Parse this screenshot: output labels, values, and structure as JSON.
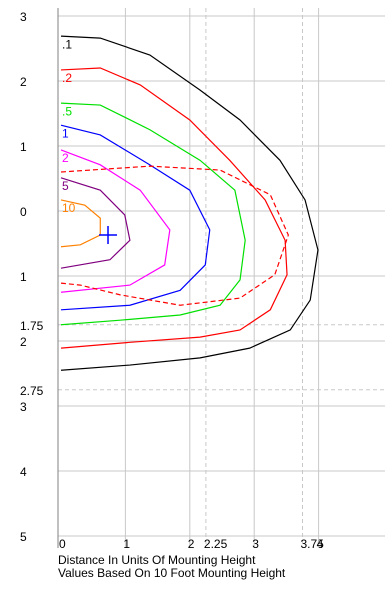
{
  "chart_data": {
    "type": "contour",
    "xlabel": "Distance In Units Of Mounting Height",
    "note": "Values Based On 10 Foot Mounting Height",
    "xlim": [
      0,
      5
    ],
    "ylim": [
      -5,
      3
    ],
    "xticks": [
      0,
      1,
      2,
      {
        "value": 2.25,
        "style": "dashed"
      },
      3,
      {
        "value": 3.75,
        "style": "dashed"
      },
      4
    ],
    "yticks": [
      3,
      2,
      1,
      0,
      {
        "value": -1,
        "label": "1"
      },
      {
        "value": -1.75,
        "label": "1.75",
        "style": "dashed"
      },
      {
        "value": -2,
        "label": "2"
      },
      {
        "value": -2.75,
        "label": "2.75",
        "style": "dashed"
      },
      {
        "value": -3,
        "label": "3"
      },
      {
        "value": -4,
        "label": "4"
      },
      {
        "value": -5,
        "label": "5"
      }
    ],
    "grid": true,
    "series": [
      {
        "name": ".1",
        "color": "#000000",
        "x": [
          0,
          0.61,
          1.38,
          2.16,
          2.78,
          3.4,
          3.79,
          3.99,
          3.87,
          3.56,
          2.93,
          2.16,
          1.07,
          0
        ],
        "y": [
          2.69,
          2.66,
          2.4,
          1.86,
          1.4,
          0.78,
          0.17,
          -0.6,
          -1.37,
          -1.83,
          -2.11,
          -2.26,
          -2.37,
          -2.45
        ]
      },
      {
        "name": ".2",
        "color": "#ff0000",
        "x": [
          0,
          0.61,
          1.23,
          2.0,
          2.62,
          3.17,
          3.48,
          3.51,
          3.25,
          2.78,
          2.16,
          1.07,
          0
        ],
        "y": [
          2.17,
          2.2,
          1.94,
          1.4,
          0.78,
          0.17,
          -0.45,
          -0.98,
          -1.52,
          -1.83,
          -1.94,
          -2.02,
          -2.11
        ]
      },
      {
        "name": ".5",
        "color": "#00e000",
        "x": [
          0,
          0.61,
          1.38,
          2.16,
          2.7,
          2.86,
          2.78,
          2.47,
          1.85,
          0.92,
          0
        ],
        "y": [
          1.66,
          1.63,
          1.25,
          0.78,
          0.32,
          -0.45,
          -1.06,
          -1.45,
          -1.6,
          -1.68,
          -1.75
        ]
      },
      {
        "name": "1",
        "color": "#0000ff",
        "x": [
          0,
          0.61,
          1.38,
          2.0,
          2.31,
          2.24,
          1.85,
          1.07,
          0
        ],
        "y": [
          1.32,
          1.17,
          0.71,
          0.32,
          -0.29,
          -0.83,
          -1.22,
          -1.45,
          -1.52
        ]
      },
      {
        "name": "2",
        "color": "#ff00ff",
        "x": [
          0,
          0.61,
          1.23,
          1.69,
          1.61,
          1.07,
          0
        ],
        "y": [
          0.94,
          0.71,
          0.32,
          -0.29,
          -0.83,
          -1.14,
          -1.25
        ]
      },
      {
        "name": "5",
        "color": "#800080",
        "x": [
          0,
          0.61,
          0.99,
          1.07,
          0.76,
          0
        ],
        "y": [
          0.51,
          0.32,
          -0.06,
          -0.45,
          -0.75,
          -0.88
        ]
      },
      {
        "name": "10",
        "color": "#ff8000",
        "x": [
          0,
          0.37,
          0.61,
          0.61,
          0.3,
          0
        ],
        "y": [
          0.17,
          0.09,
          -0.11,
          -0.37,
          -0.52,
          -0.55
        ]
      },
      {
        "color": "#ff0000",
        "dashed": true,
        "x": [
          0,
          1.38,
          2.47,
          3.25,
          3.53,
          3.32,
          2.78,
          1.85,
          0.92,
          0.3,
          0
        ],
        "y": [
          0.6,
          0.69,
          0.63,
          0.25,
          -0.37,
          -0.98,
          -1.34,
          -1.45,
          -1.29,
          -1.14,
          -1.11
        ]
      }
    ],
    "marker": {
      "x": 0.73,
      "y": -0.37,
      "color": "#0000ff"
    }
  }
}
